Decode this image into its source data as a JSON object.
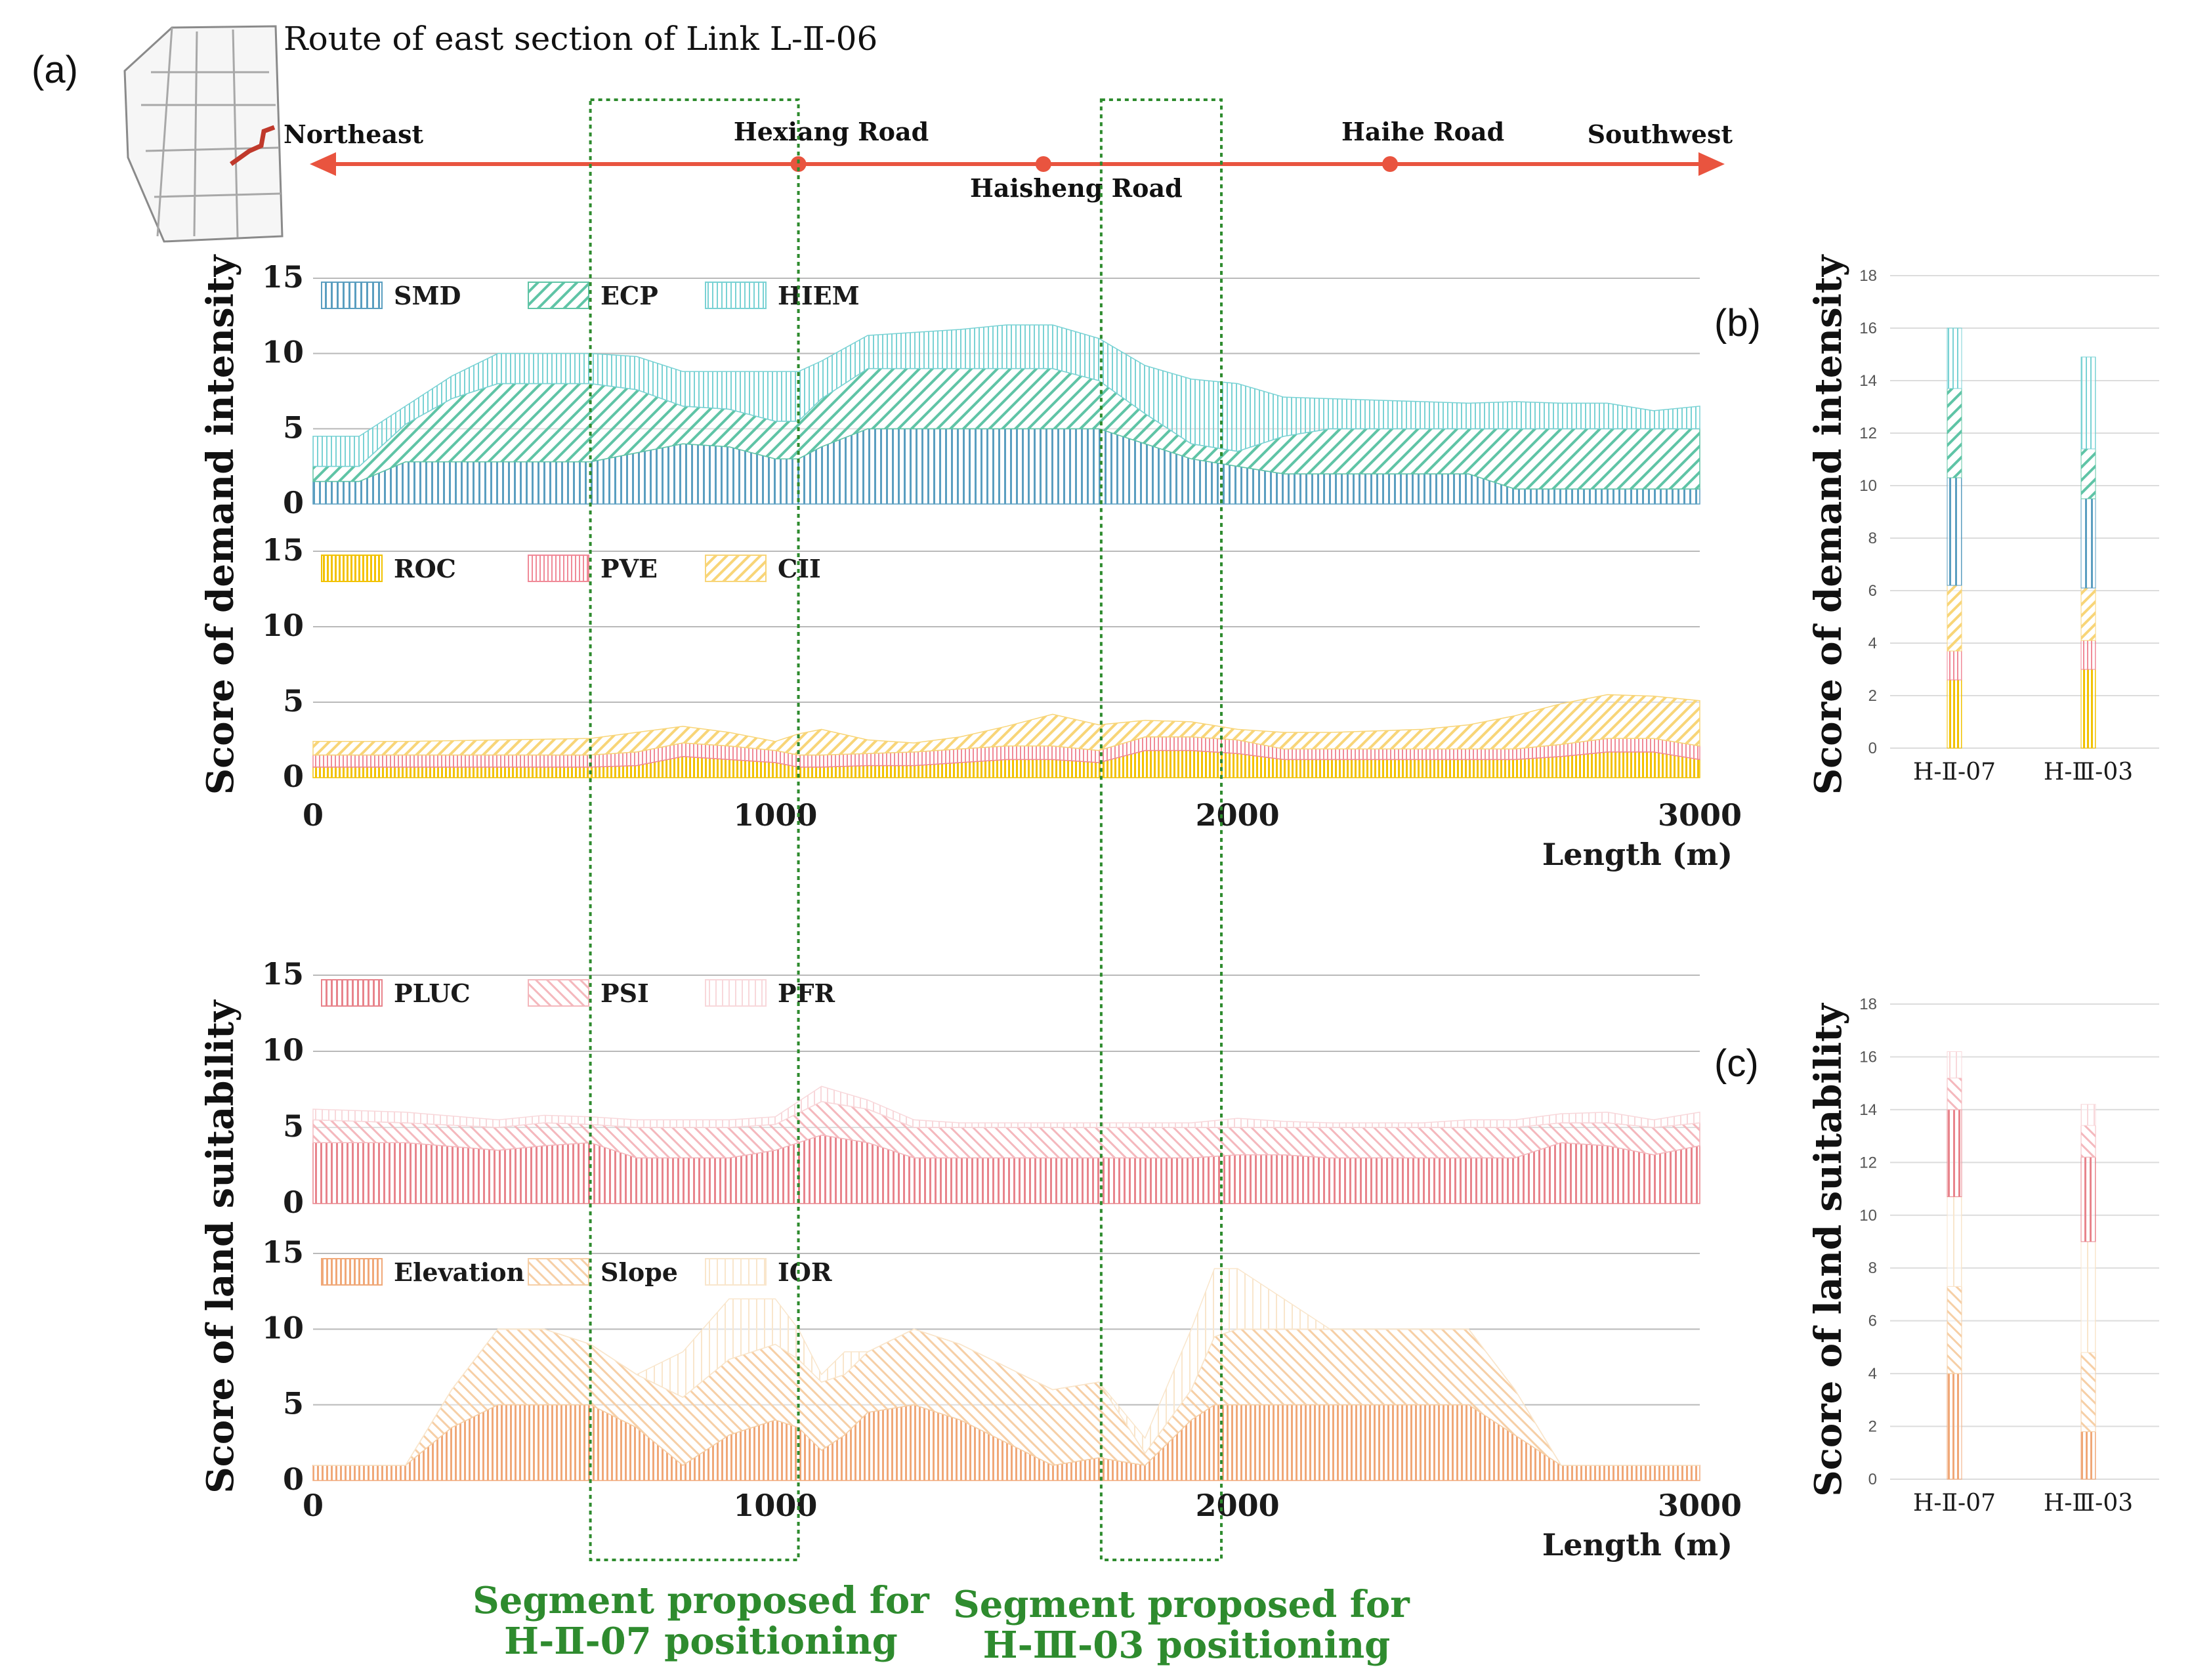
{
  "panel_labels": {
    "a": "(a)",
    "b": "(b)",
    "c": "(c)"
  },
  "route": {
    "title": "Route of east section of Link L-Ⅱ-06",
    "start": "Northeast",
    "end": "Southwest",
    "roads": [
      {
        "name": "Hexiang Road",
        "position_m": 1050,
        "label": "above"
      },
      {
        "name": "Haisheng Road",
        "position_m": 1580,
        "label": "below"
      },
      {
        "name": "Haihe Road",
        "position_m": 2330,
        "label": "above"
      }
    ]
  },
  "highlight_segments": [
    {
      "range_m": [
        600,
        1050
      ],
      "label_line1": "Segment proposed for",
      "label_line2": "H-Ⅱ-07 positioning"
    },
    {
      "range_m": [
        1705,
        1965
      ],
      "label_line1": "Segment proposed for",
      "label_line2": "H-Ⅲ-03 positioning"
    }
  ],
  "colors": {
    "route": "#e9543f",
    "highlight": "#2e8b2e",
    "SMD": "#5a9ec0",
    "ECP": "#5fc4a6",
    "HIEM": "#79d2d4",
    "ROC": "#f2c200",
    "PVE": "#f08a98",
    "CII": "#f8d578",
    "PLUC": "#e8848c",
    "PSI": "#f4b8bd",
    "PFR": "#f8d8db",
    "Elevation": "#f0a878",
    "Slope": "#f6cfa6",
    "IOR": "#f9e6cc",
    "axis_text": "#1a1a1a",
    "grid": "#b9b9b9"
  },
  "y_labels": {
    "demand": "Score of demand intensity",
    "suitability": "Score of land suitability"
  },
  "x_axis": {
    "label": "Length (m)",
    "ticks": [
      0,
      1000,
      2000,
      3000
    ]
  },
  "chart_data": [
    {
      "id": "demand_top",
      "type": "area",
      "stacked": true,
      "xlim": [
        0,
        3000
      ],
      "ylim": [
        0,
        15
      ],
      "yticks": [
        0,
        5,
        10,
        15
      ],
      "x": [
        0,
        100,
        200,
        300,
        400,
        500,
        600,
        700,
        800,
        900,
        1000,
        1050,
        1100,
        1200,
        1300,
        1400,
        1500,
        1600,
        1700,
        1800,
        1900,
        2000,
        2100,
        2200,
        2300,
        2400,
        2500,
        2600,
        2700,
        2800,
        2900,
        3000
      ],
      "series": [
        {
          "name": "SMD",
          "values": [
            1.5,
            1.5,
            2.8,
            2.8,
            2.8,
            2.8,
            2.8,
            3.4,
            4.0,
            3.8,
            3.0,
            3.0,
            3.8,
            5.0,
            5.0,
            5.0,
            5.0,
            5.0,
            5.0,
            4.0,
            3.0,
            2.5,
            2.0,
            2.0,
            2.0,
            2.0,
            2.0,
            1.0,
            1.0,
            1.0,
            1.0,
            1.0
          ]
        },
        {
          "name": "ECP",
          "values": [
            1.0,
            1.0,
            2.5,
            4.2,
            5.2,
            5.2,
            5.2,
            4.2,
            2.5,
            2.5,
            2.5,
            2.5,
            3.2,
            4.0,
            4.0,
            4.0,
            4.0,
            4.0,
            3.2,
            2.0,
            1.0,
            1.0,
            2.5,
            3.0,
            3.0,
            3.0,
            3.0,
            4.0,
            4.0,
            4.0,
            4.0,
            4.0
          ]
        },
        {
          "name": "HIEM",
          "values": [
            2.0,
            2.0,
            1.2,
            1.5,
            2.0,
            2.0,
            2.0,
            2.2,
            2.3,
            2.5,
            3.3,
            3.3,
            2.5,
            2.2,
            2.4,
            2.6,
            2.9,
            2.9,
            2.8,
            3.2,
            4.3,
            4.5,
            2.6,
            2.0,
            1.9,
            1.8,
            1.7,
            1.8,
            1.7,
            1.7,
            1.2,
            1.5
          ]
        }
      ],
      "legend": [
        "SMD",
        "ECP",
        "HIEM"
      ]
    },
    {
      "id": "demand_bottom",
      "type": "area",
      "stacked": true,
      "xlim": [
        0,
        3000
      ],
      "ylim": [
        0,
        15
      ],
      "yticks": [
        0,
        5,
        10,
        15
      ],
      "x": [
        0,
        200,
        400,
        600,
        700,
        800,
        900,
        1000,
        1050,
        1100,
        1200,
        1300,
        1400,
        1500,
        1600,
        1700,
        1800,
        1900,
        2000,
        2100,
        2200,
        2300,
        2400,
        2500,
        2600,
        2700,
        2800,
        2900,
        3000
      ],
      "series": [
        {
          "name": "ROC",
          "values": [
            0.7,
            0.7,
            0.7,
            0.7,
            0.8,
            1.4,
            1.2,
            1.0,
            0.7,
            0.7,
            0.8,
            0.8,
            1.0,
            1.2,
            1.2,
            1.0,
            1.8,
            1.8,
            1.6,
            1.2,
            1.2,
            1.2,
            1.2,
            1.2,
            1.2,
            1.4,
            1.7,
            1.7,
            1.2
          ]
        },
        {
          "name": "PVE",
          "values": [
            0.8,
            0.8,
            0.8,
            0.8,
            0.9,
            0.9,
            0.9,
            0.8,
            0.8,
            0.8,
            0.8,
            0.9,
            0.9,
            0.9,
            0.9,
            0.8,
            0.9,
            0.9,
            0.9,
            0.7,
            0.7,
            0.7,
            0.7,
            0.7,
            0.7,
            0.8,
            0.9,
            0.9,
            0.9
          ]
        },
        {
          "name": "CII",
          "values": [
            0.9,
            0.9,
            1.0,
            1.1,
            1.3,
            1.1,
            0.9,
            0.6,
            1.4,
            1.7,
            0.9,
            0.6,
            0.8,
            1.3,
            2.1,
            1.7,
            1.1,
            1.0,
            0.7,
            1.1,
            1.1,
            1.2,
            1.3,
            1.6,
            2.2,
            2.7,
            2.9,
            2.8,
            3.0
          ]
        }
      ],
      "legend": [
        "ROC",
        "PVE",
        "CII"
      ]
    },
    {
      "id": "suit_top",
      "type": "area",
      "stacked": true,
      "xlim": [
        0,
        3000
      ],
      "ylim": [
        0,
        15
      ],
      "yticks": [
        0,
        5,
        10,
        15
      ],
      "x": [
        0,
        200,
        400,
        500,
        600,
        700,
        800,
        900,
        1000,
        1100,
        1200,
        1300,
        1400,
        1500,
        1600,
        1700,
        1800,
        1900,
        2000,
        2100,
        2200,
        2300,
        2400,
        2500,
        2600,
        2700,
        2800,
        2900,
        3000
      ],
      "series": [
        {
          "name": "PLUC",
          "values": [
            4.0,
            4.0,
            3.5,
            3.8,
            4.0,
            3.0,
            3.0,
            3.0,
            3.5,
            4.5,
            4.0,
            3.0,
            3.0,
            3.0,
            3.0,
            3.0,
            3.0,
            3.0,
            3.2,
            3.2,
            3.0,
            3.0,
            3.0,
            3.0,
            3.0,
            4.0,
            3.8,
            3.2,
            3.8
          ]
        },
        {
          "name": "PSI",
          "values": [
            1.5,
            1.3,
            1.5,
            1.5,
            1.2,
            2.0,
            2.0,
            2.0,
            1.7,
            2.2,
            2.2,
            2.0,
            2.0,
            2.0,
            2.0,
            2.0,
            2.0,
            2.0,
            1.8,
            1.8,
            2.0,
            2.0,
            2.0,
            2.0,
            2.0,
            1.3,
            1.5,
            1.8,
            1.5
          ]
        },
        {
          "name": "PFR",
          "values": [
            0.7,
            0.7,
            0.5,
            0.5,
            0.5,
            0.5,
            0.5,
            0.5,
            0.5,
            1.0,
            0.6,
            0.5,
            0.3,
            0.3,
            0.3,
            0.3,
            0.3,
            0.3,
            0.6,
            0.4,
            0.3,
            0.3,
            0.3,
            0.5,
            0.5,
            0.6,
            0.7,
            0.5,
            0.7
          ]
        }
      ],
      "legend": [
        "PLUC",
        "PSI",
        "PFR"
      ]
    },
    {
      "id": "suit_bottom",
      "type": "area",
      "stacked": true,
      "xlim": [
        0,
        3000
      ],
      "ylim": [
        0,
        15
      ],
      "yticks": [
        0,
        5,
        10,
        15
      ],
      "x": [
        0,
        200,
        300,
        400,
        500,
        600,
        700,
        800,
        900,
        1000,
        1050,
        1100,
        1150,
        1200,
        1300,
        1400,
        1500,
        1600,
        1700,
        1800,
        1900,
        1950,
        2000,
        2100,
        2200,
        2300,
        2400,
        2500,
        2600,
        2700,
        2800,
        3000
      ],
      "series": [
        {
          "name": "Elevation",
          "values": [
            1,
            1,
            3.5,
            5,
            5,
            5,
            3.5,
            1,
            3,
            4,
            3.5,
            2,
            3,
            4.5,
            5,
            4,
            2.5,
            1,
            1.5,
            1,
            4,
            5,
            5,
            5,
            5,
            5,
            5,
            5,
            3,
            1,
            1,
            1
          ]
        },
        {
          "name": "Slope",
          "values": [
            0,
            0,
            2.5,
            5,
            5,
            4,
            3.5,
            4.5,
            5,
            5,
            4.5,
            4.5,
            4,
            4,
            5,
            5,
            5,
            5,
            5,
            0.8,
            2,
            4.5,
            5,
            5,
            5,
            5,
            5,
            5,
            3,
            0,
            0,
            0
          ]
        },
        {
          "name": "IOR",
          "values": [
            0,
            0,
            0,
            0,
            0,
            0,
            0,
            3,
            4,
            3,
            2,
            0.5,
            1.5,
            0,
            0,
            0,
            0,
            0,
            0,
            1,
            4,
            4.5,
            4,
            2,
            0,
            0,
            0,
            0,
            0,
            0,
            0,
            0
          ]
        }
      ],
      "legend": [
        "Elevation",
        "Slope",
        "IOR"
      ]
    },
    {
      "id": "demand_bars",
      "type": "bar",
      "stacked": true,
      "categories": [
        "H-Ⅱ-07",
        "H-Ⅲ-03"
      ],
      "ylim": [
        0,
        18
      ],
      "yticks": [
        0,
        2,
        4,
        6,
        8,
        10,
        12,
        14,
        16,
        18
      ],
      "series": [
        {
          "name": "ROC",
          "values": [
            2.6,
            3.0
          ]
        },
        {
          "name": "PVE",
          "values": [
            1.1,
            1.1
          ]
        },
        {
          "name": "CII",
          "values": [
            2.5,
            2.0
          ]
        },
        {
          "name": "SMD",
          "values": [
            4.1,
            3.4
          ]
        },
        {
          "name": "ECP",
          "values": [
            3.4,
            1.9
          ]
        },
        {
          "name": "HIEM",
          "values": [
            2.3,
            3.5
          ]
        }
      ]
    },
    {
      "id": "suit_bars",
      "type": "bar",
      "stacked": true,
      "categories": [
        "H-Ⅱ-07",
        "H-Ⅲ-03"
      ],
      "ylim": [
        0,
        18
      ],
      "yticks": [
        0,
        2,
        4,
        6,
        8,
        10,
        12,
        14,
        16,
        18
      ],
      "series": [
        {
          "name": "Elevation",
          "values": [
            4.0,
            1.8
          ]
        },
        {
          "name": "Slope",
          "values": [
            3.3,
            3.0
          ]
        },
        {
          "name": "IOR",
          "values": [
            3.4,
            4.2
          ]
        },
        {
          "name": "PLUC",
          "values": [
            3.3,
            3.2
          ]
        },
        {
          "name": "PSI",
          "values": [
            1.2,
            1.2
          ]
        },
        {
          "name": "PFR",
          "values": [
            1.0,
            0.8
          ]
        }
      ]
    }
  ]
}
